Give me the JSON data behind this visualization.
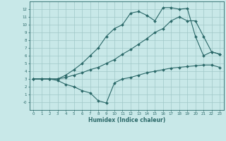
{
  "xlabel": "Humidex (Indice chaleur)",
  "bg_color": "#c8e8e8",
  "grid_color": "#a0c8c8",
  "line_color": "#2a6868",
  "line1_x": [
    0,
    1,
    2,
    3,
    4,
    5,
    6,
    7,
    8,
    9,
    10,
    11,
    12,
    13,
    14,
    15,
    16,
    17,
    18,
    19,
    20,
    21,
    22,
    23
  ],
  "line1_y": [
    3.0,
    3.0,
    3.0,
    2.8,
    2.3,
    2.0,
    1.5,
    1.2,
    0.2,
    -0.1,
    2.5,
    3.0,
    3.2,
    3.5,
    3.8,
    4.0,
    4.2,
    4.4,
    4.5,
    4.6,
    4.7,
    4.8,
    4.8,
    4.5
  ],
  "line2_x": [
    0,
    1,
    2,
    3,
    4,
    5,
    6,
    7,
    8,
    9,
    10,
    11,
    12,
    13,
    14,
    15,
    16,
    17,
    18,
    19,
    20,
    21,
    22,
    23
  ],
  "line2_y": [
    3.0,
    3.0,
    3.0,
    3.0,
    3.2,
    3.5,
    3.8,
    4.2,
    4.5,
    5.0,
    5.5,
    6.2,
    6.8,
    7.5,
    8.2,
    9.0,
    9.5,
    10.5,
    11.0,
    10.5,
    10.5,
    8.5,
    6.5,
    6.2
  ],
  "line3_x": [
    0,
    1,
    2,
    3,
    4,
    5,
    6,
    7,
    8,
    9,
    10,
    11,
    12,
    13,
    14,
    15,
    16,
    17,
    18,
    19,
    20,
    21,
    22,
    23
  ],
  "line3_y": [
    3.0,
    3.0,
    3.0,
    3.0,
    3.5,
    4.2,
    5.0,
    6.0,
    7.0,
    8.5,
    9.5,
    10.0,
    11.5,
    11.7,
    11.2,
    10.5,
    12.2,
    12.2,
    12.0,
    12.1,
    8.5,
    6.0,
    6.5,
    6.2
  ],
  "ylim": [
    -1.0,
    13.0
  ],
  "xlim": [
    -0.5,
    23.5
  ],
  "yticks": [
    0,
    1,
    2,
    3,
    4,
    5,
    6,
    7,
    8,
    9,
    10,
    11,
    12
  ],
  "xticks": [
    0,
    1,
    2,
    3,
    4,
    5,
    6,
    7,
    8,
    9,
    10,
    11,
    12,
    13,
    14,
    15,
    16,
    17,
    18,
    19,
    20,
    21,
    22,
    23
  ],
  "ytick_labels": [
    "-0",
    "1",
    "2",
    "3",
    "4",
    "5",
    "6",
    "7",
    "8",
    "9",
    "10",
    "11",
    "12"
  ],
  "marker": "D",
  "marker_size": 2,
  "linewidth": 0.8
}
